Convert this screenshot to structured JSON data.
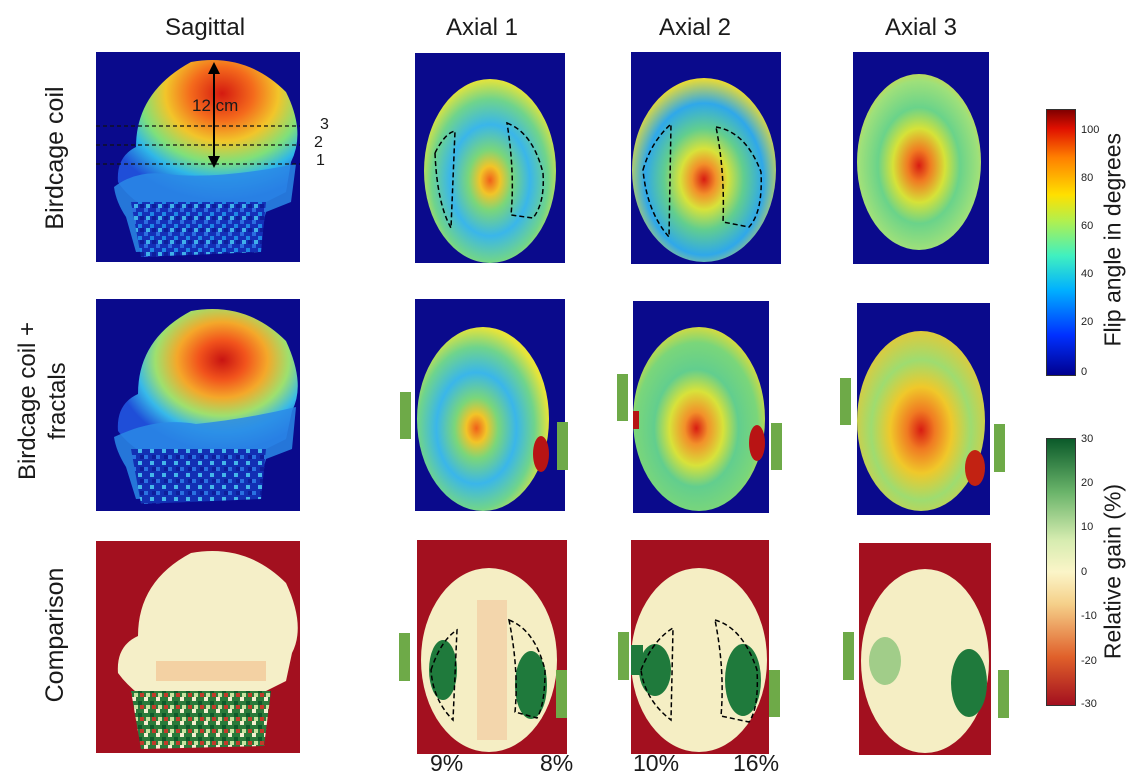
{
  "columns": [
    "Sagittal",
    "Axial 1",
    "Axial 2",
    "Axial 3"
  ],
  "rows": [
    "Birdcage coil",
    "Birdcage coil +\nfractals",
    "Comparison"
  ],
  "row_labels": {
    "row1": "Birdcage coil",
    "row2_line1": "Birdcage coil +",
    "row2_line2": "fractals",
    "row3": "Comparison"
  },
  "sagittal_annotation": {
    "dimension": "12 cm",
    "slice_numbers": [
      "3",
      "2",
      "1"
    ]
  },
  "gains": {
    "axial1_left": "9%",
    "axial1_right": "8%",
    "axial2_left": "10%",
    "axial2_right": "16%"
  },
  "colorbar_flip": {
    "label": "Flip angle in degrees",
    "ticks": [
      "100",
      "80",
      "60",
      "40",
      "20",
      "0"
    ],
    "min": 0,
    "max": 110
  },
  "colorbar_gain": {
    "label": "Relative gain (%)",
    "ticks": [
      "30",
      "20",
      "10",
      "0",
      "-10",
      "-20",
      "-30"
    ],
    "min": -30,
    "max": 30
  },
  "colors": {
    "map_background": "#0a0a8c",
    "comparison_background": "#a3101f",
    "fractal_marker": "#6eaa48"
  }
}
